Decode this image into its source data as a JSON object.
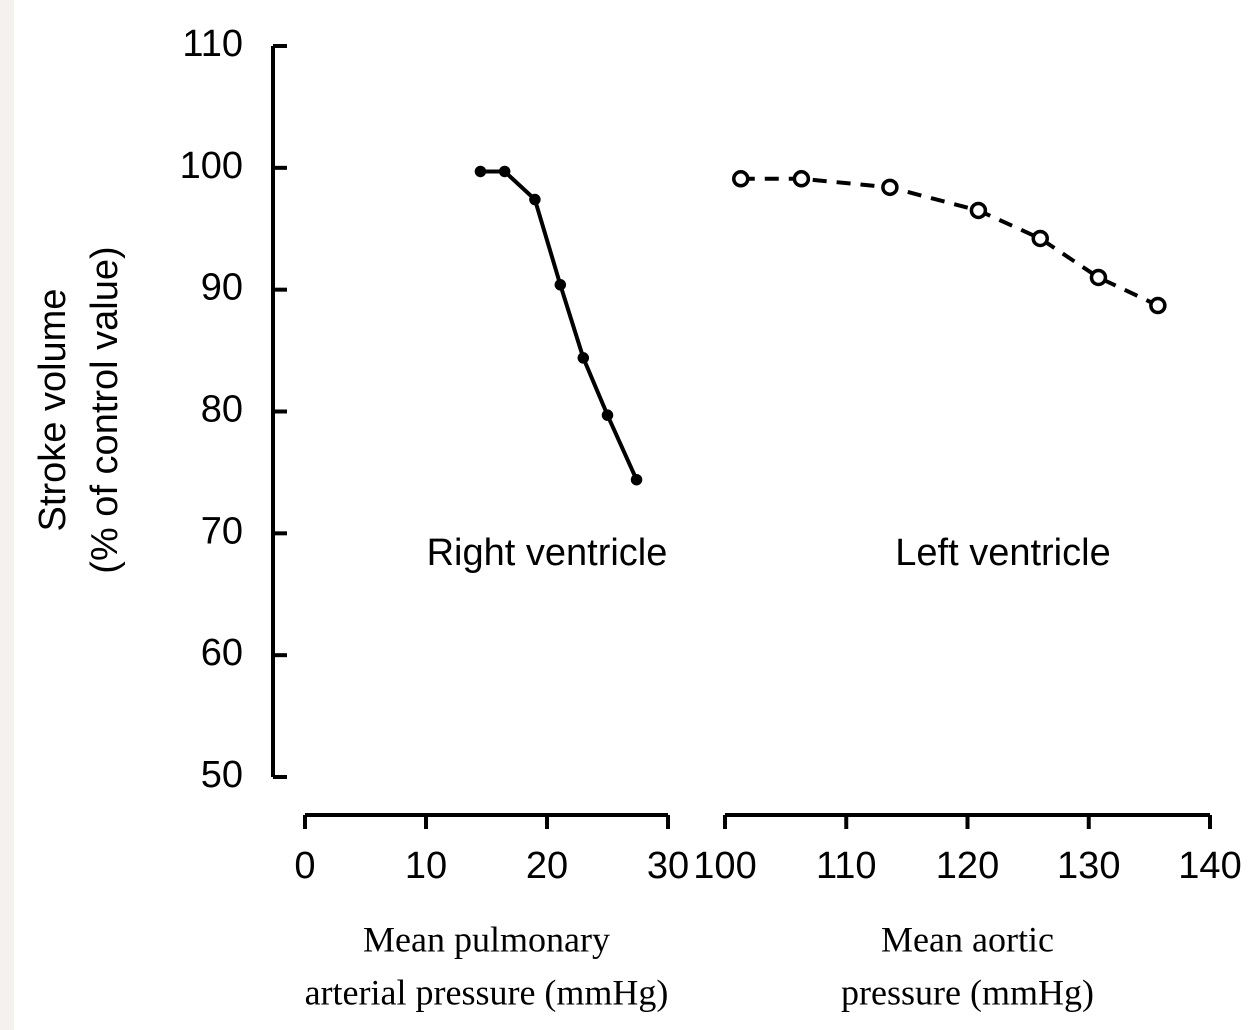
{
  "chart_data": [
    {
      "type": "line",
      "y_label": [
        "Stroke volume",
        "(% of control value)"
      ],
      "ylim": [
        50,
        110
      ],
      "yticks": [
        50,
        60,
        70,
        80,
        90,
        100,
        110
      ],
      "x_label": [
        "Mean pulmonary",
        "arterial pressure (mmHg)"
      ],
      "xlim": [
        0,
        30
      ],
      "xticks": [
        0,
        10,
        20,
        30
      ],
      "annotation": "Right ventricle",
      "x": [
        14.5,
        16.5,
        19.0,
        21.1,
        23.0,
        25.0,
        27.4
      ],
      "values": [
        99.7,
        99.7,
        97.4,
        90.4,
        84.4,
        79.7,
        74.4
      ],
      "color": "#000000",
      "line_style": "solid",
      "marker": "dot"
    },
    {
      "type": "line",
      "x_label": [
        "Mean aortic",
        "pressure (mmHg)"
      ],
      "xlim": [
        100,
        140
      ],
      "xticks": [
        100,
        110,
        120,
        130,
        140
      ],
      "annotation": "Left ventricle",
      "x": [
        101.3,
        106.3,
        113.6,
        120.9,
        126.0,
        130.8,
        135.7
      ],
      "values": [
        99.1,
        99.1,
        98.4,
        96.5,
        94.2,
        91.0,
        88.7
      ],
      "color": "#000000",
      "line_style": "dashed",
      "marker": "open-circle"
    }
  ]
}
